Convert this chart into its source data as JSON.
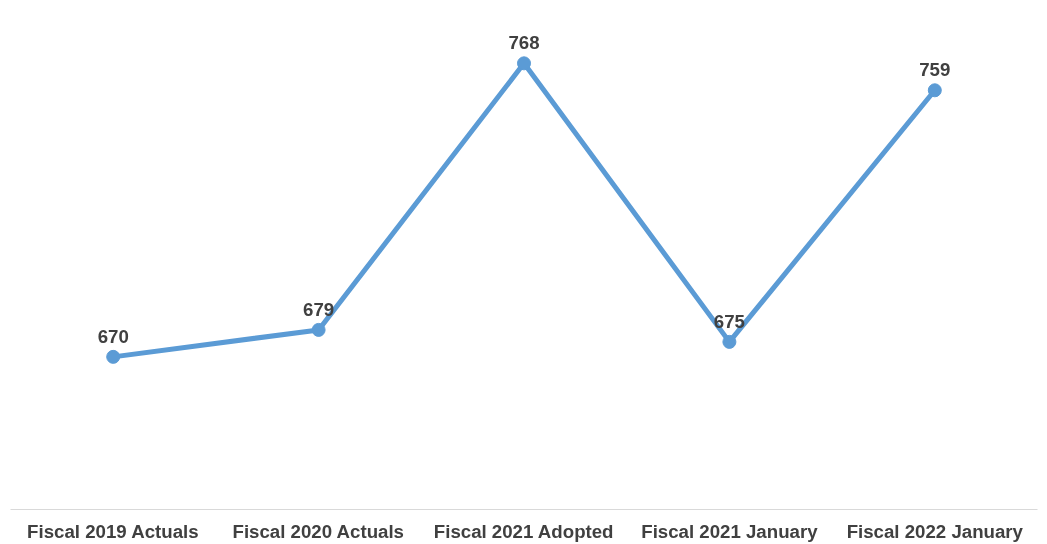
{
  "chart_data": {
    "type": "line",
    "categories": [
      "Fiscal 2019 Actuals",
      "Fiscal 2020 Actuals",
      "Fiscal 2021 Adopted",
      "Fiscal 2021 January",
      "Fiscal 2022 January"
    ],
    "series": [
      {
        "color": "#5b9bd5",
        "values": [
          670,
          679,
          768,
          675,
          759
        ]
      }
    ],
    "data_labels": true,
    "marker": "circle",
    "line_style": "solid",
    "grid": false
  }
}
